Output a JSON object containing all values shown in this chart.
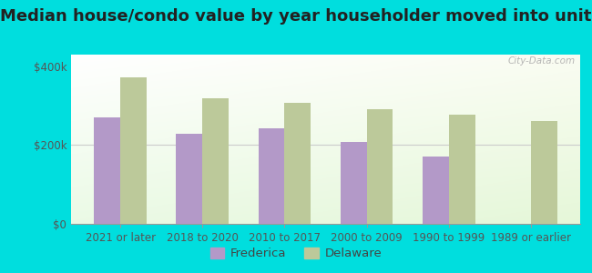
{
  "title": "Median house/condo value by year householder moved into unit",
  "categories": [
    "2021 or later",
    "2018 to 2020",
    "2010 to 2017",
    "2000 to 2009",
    "1990 to 1999",
    "1989 or earlier"
  ],
  "frederica_values": [
    270000,
    228000,
    242000,
    208000,
    172000,
    0
  ],
  "delaware_values": [
    372000,
    318000,
    308000,
    292000,
    278000,
    262000
  ],
  "frederica_color": "#b399c8",
  "delaware_color": "#bcc99a",
  "background_color": "#00dede",
  "ylabel_ticks": [
    "$0",
    "$200k",
    "$400k"
  ],
  "ytick_values": [
    0,
    200000,
    400000
  ],
  "ylim": [
    0,
    430000
  ],
  "bar_width": 0.32,
  "legend_frederica": "Frederica",
  "legend_delaware": "Delaware",
  "watermark": "City-Data.com",
  "title_fontsize": 13,
  "tick_fontsize": 8.5,
  "legend_fontsize": 9.5
}
